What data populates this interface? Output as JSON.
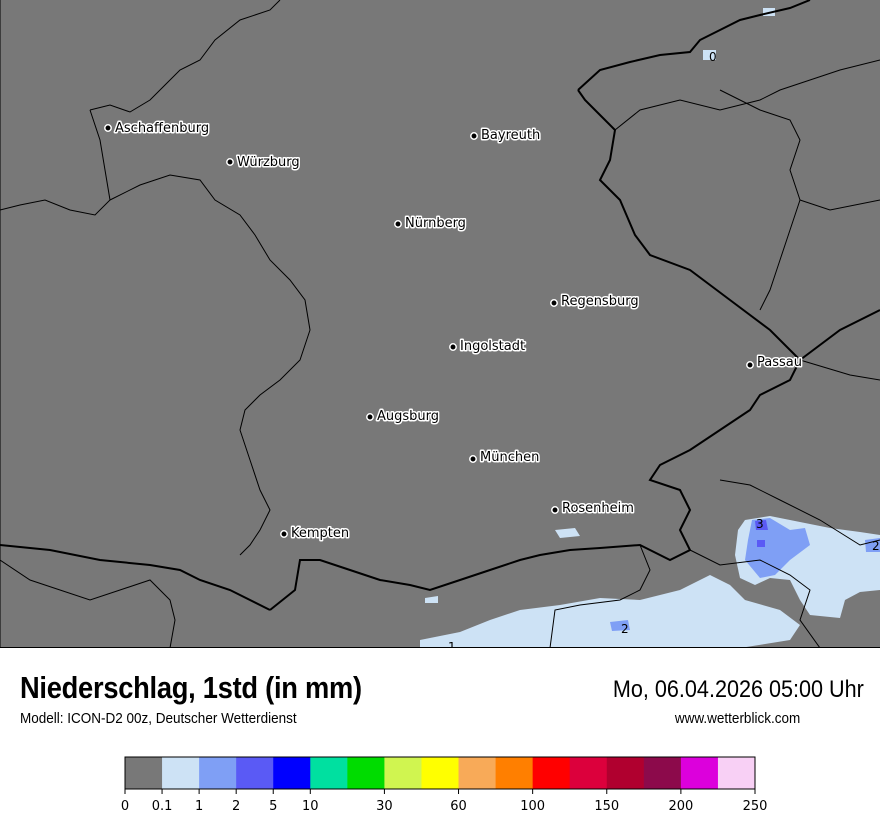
{
  "header": {
    "title": "Niederschlag, 1std (in mm)",
    "subtitle": "Modell: ICON-D2 00z, Deutscher Wetterdienst",
    "datetime": "Mo, 06.04.2026 05:00 Uhr",
    "website": "www.wetterblick.com"
  },
  "map": {
    "background_color": "#787878",
    "cities": [
      "Aschaffenburg",
      "Würzburg",
      "Bayreuth",
      "Nürnberg",
      "Regensburg",
      "Ingolstadt",
      "Passau",
      "Augsburg",
      "München",
      "Rosenheim",
      "Kempten"
    ],
    "contour_labels": [
      "0",
      "3",
      "2",
      "2",
      "1"
    ]
  },
  "legend": {
    "colors": [
      "#787878",
      "#cde2f5",
      "#7f9ff5",
      "#5a5af5",
      "#0000ff",
      "#00e0a0",
      "#00dc00",
      "#d0f550",
      "#ffff00",
      "#f8aa58",
      "#ff7f00",
      "#ff0000",
      "#dc003c",
      "#b0002f",
      "#8c0a4b",
      "#dc00dc",
      "#f8d0f5"
    ],
    "ticks": [
      {
        "label": "0",
        "index": 0
      },
      {
        "label": "0.1",
        "index": 1
      },
      {
        "label": "1",
        "index": 2
      },
      {
        "label": "2",
        "index": 3
      },
      {
        "label": "5",
        "index": 4
      },
      {
        "label": "10",
        "index": 5
      },
      {
        "label": "30",
        "index": 7
      },
      {
        "label": "60",
        "index": 9
      },
      {
        "label": "100",
        "index": 11
      },
      {
        "label": "150",
        "index": 13
      },
      {
        "label": "200",
        "index": 15
      },
      {
        "label": "250",
        "index": 17
      }
    ]
  }
}
